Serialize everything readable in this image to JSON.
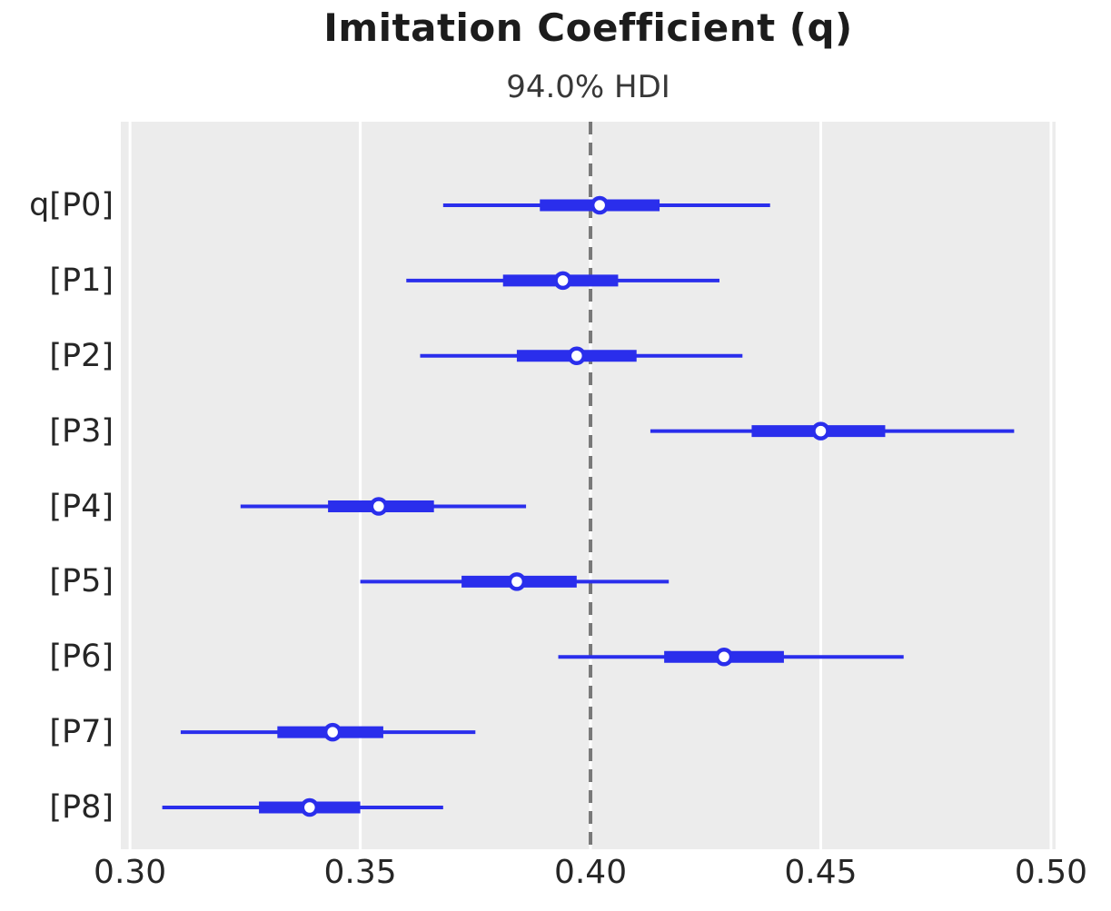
{
  "colors": {
    "interval_blue": "#2a2eec",
    "marker_fill": "#ffffff",
    "plot_background": "#ececec",
    "gridline_white": "#ffffff",
    "reference_line_gray": "#787878",
    "title_text": "#1c1c1c",
    "tick_text": "#262626"
  },
  "chart_data": {
    "type": "scatter",
    "variant": "forest-plot-hdi-intervals",
    "title": "Imitation Coefficient (q)",
    "subtitle": "94.0% HDI",
    "hdi_probability": "94.0%",
    "xlabel": "",
    "ylabel": "",
    "xlim": [
      0.298,
      0.501
    ],
    "x_ticks": [
      0.3,
      0.35,
      0.4,
      0.45,
      0.5
    ],
    "x_tick_labels": [
      "0.30",
      "0.35",
      "0.40",
      "0.45",
      "0.50"
    ],
    "grid": "vertical-gridlines-on",
    "legend": false,
    "reference_line_x": 0.4,
    "reference_line_style": "dashed",
    "rows": [
      {
        "label": "q[P0]",
        "hdi_lower": 0.368,
        "quartile_lower": 0.389,
        "median": 0.402,
        "quartile_upper": 0.415,
        "hdi_upper": 0.439
      },
      {
        "label": "[P1]",
        "hdi_lower": 0.36,
        "quartile_lower": 0.381,
        "median": 0.394,
        "quartile_upper": 0.406,
        "hdi_upper": 0.428
      },
      {
        "label": "[P2]",
        "hdi_lower": 0.363,
        "quartile_lower": 0.384,
        "median": 0.397,
        "quartile_upper": 0.41,
        "hdi_upper": 0.433
      },
      {
        "label": "[P3]",
        "hdi_lower": 0.413,
        "quartile_lower": 0.435,
        "median": 0.45,
        "quartile_upper": 0.464,
        "hdi_upper": 0.492
      },
      {
        "label": "[P4]",
        "hdi_lower": 0.324,
        "quartile_lower": 0.343,
        "median": 0.354,
        "quartile_upper": 0.366,
        "hdi_upper": 0.386
      },
      {
        "label": "[P5]",
        "hdi_lower": 0.35,
        "quartile_lower": 0.372,
        "median": 0.384,
        "quartile_upper": 0.397,
        "hdi_upper": 0.417
      },
      {
        "label": "[P6]",
        "hdi_lower": 0.393,
        "quartile_lower": 0.416,
        "median": 0.429,
        "quartile_upper": 0.442,
        "hdi_upper": 0.468
      },
      {
        "label": "[P7]",
        "hdi_lower": 0.311,
        "quartile_lower": 0.332,
        "median": 0.344,
        "quartile_upper": 0.355,
        "hdi_upper": 0.375
      },
      {
        "label": "[P8]",
        "hdi_lower": 0.307,
        "quartile_lower": 0.328,
        "median": 0.339,
        "quartile_upper": 0.35,
        "hdi_upper": 0.368
      }
    ]
  }
}
